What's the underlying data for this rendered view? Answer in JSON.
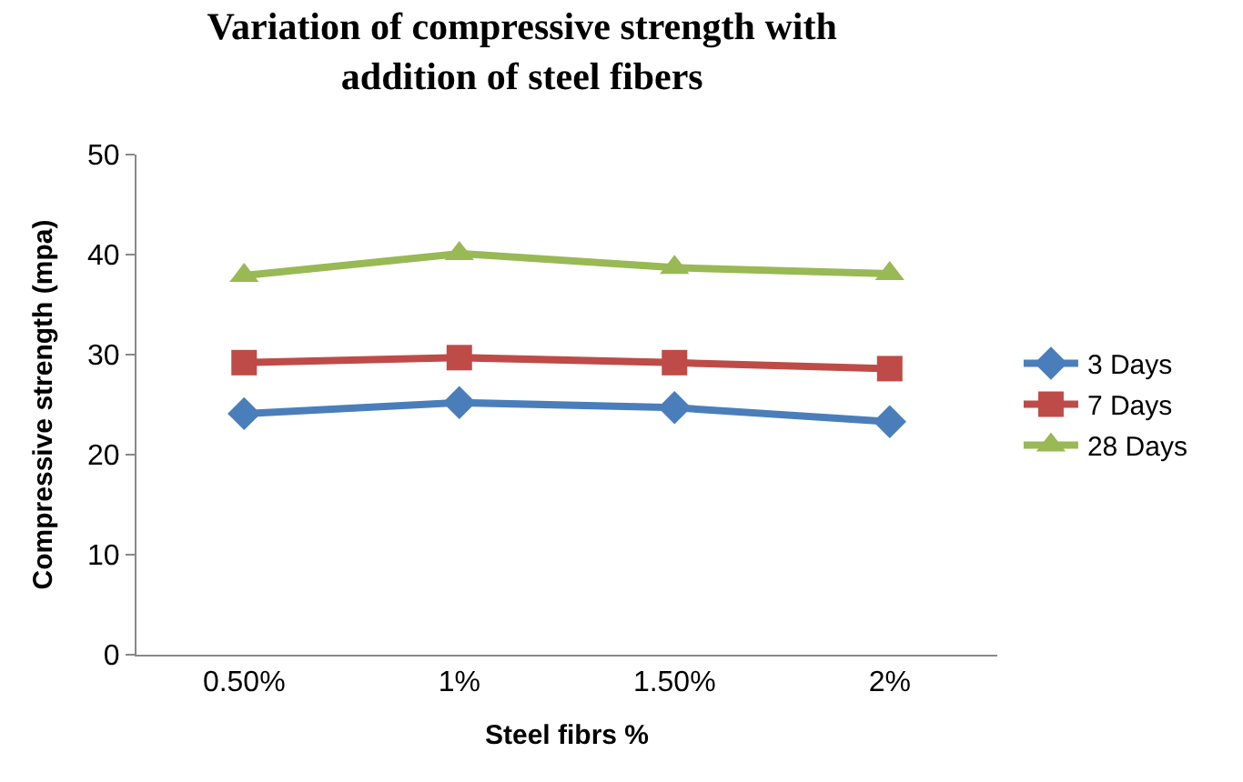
{
  "chart_data": {
    "type": "line",
    "title": "Variation of compressive strength with addition of steel fibers",
    "xlabel": "Steel fibrs %",
    "ylabel": "Compressive strength (mpa)",
    "categories": [
      "0.50%",
      "1%",
      "1.50%",
      "2%"
    ],
    "series": [
      {
        "name": "3 Days",
        "color": "#4a7ebb",
        "marker": "diamond",
        "values": [
          24.1,
          25.2,
          24.7,
          23.3
        ]
      },
      {
        "name": "7 Days",
        "color": "#be4b48",
        "marker": "square",
        "values": [
          29.2,
          29.7,
          29.2,
          28.6
        ]
      },
      {
        "name": "28 Days",
        "color": "#98b954",
        "marker": "triangle",
        "values": [
          37.9,
          40.1,
          38.7,
          38.1
        ]
      }
    ],
    "ylim": [
      0,
      50
    ],
    "yticks": [
      0,
      10,
      20,
      30,
      40,
      50
    ],
    "legend": "right",
    "line_style": "solid"
  }
}
